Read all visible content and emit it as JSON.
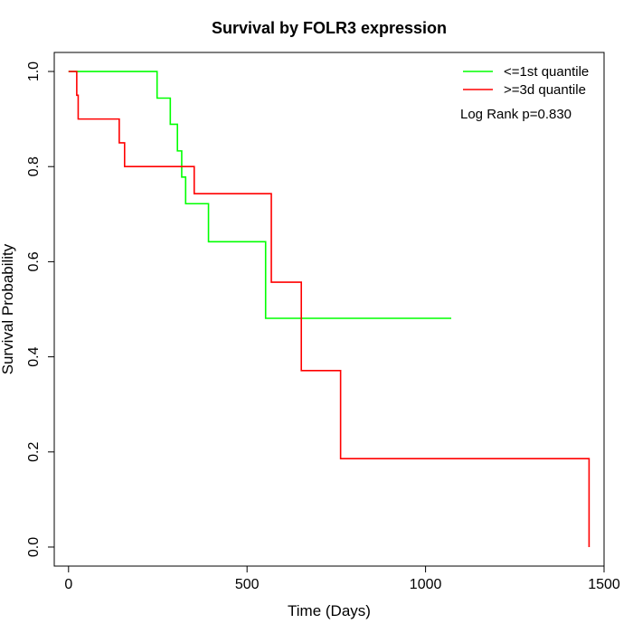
{
  "chart_data": {
    "type": "line",
    "title": "Survival by FOLR3 expression",
    "xlabel": "Time (Days)",
    "ylabel": "Survival Probability",
    "xlim": [
      -40,
      1500
    ],
    "ylim": [
      -0.04,
      1.04
    ],
    "x_ticks": [
      0,
      500,
      1000,
      1500
    ],
    "y_ticks": [
      0.0,
      0.2,
      0.4,
      0.6,
      0.8,
      1.0
    ],
    "x_tick_labels": [
      "0",
      "500",
      "1000",
      "1500"
    ],
    "y_tick_labels": [
      "0.0",
      "0.2",
      "0.4",
      "0.6",
      "0.8",
      "1.0"
    ],
    "legend_position": "top-right",
    "grid": false,
    "annotation": "Log Rank p=0.830",
    "series": [
      {
        "name": "<=1st quantile",
        "color": "#00ff00",
        "steps": [
          [
            0,
            1.0
          ],
          [
            248,
            0.944
          ],
          [
            285,
            0.889
          ],
          [
            305,
            0.833
          ],
          [
            317,
            0.778
          ],
          [
            328,
            0.722
          ],
          [
            392,
            0.642
          ],
          [
            552,
            0.481
          ],
          [
            1072,
            0.481
          ]
        ]
      },
      {
        "name": ">=3d quantile",
        "color": "#ff0000",
        "steps": [
          [
            0,
            1.0
          ],
          [
            23,
            0.95
          ],
          [
            27,
            0.9
          ],
          [
            142,
            0.85
          ],
          [
            157,
            0.8
          ],
          [
            352,
            0.743
          ],
          [
            568,
            0.557
          ],
          [
            652,
            0.371
          ],
          [
            762,
            0.186
          ],
          [
            1458,
            0.0
          ]
        ]
      }
    ]
  }
}
